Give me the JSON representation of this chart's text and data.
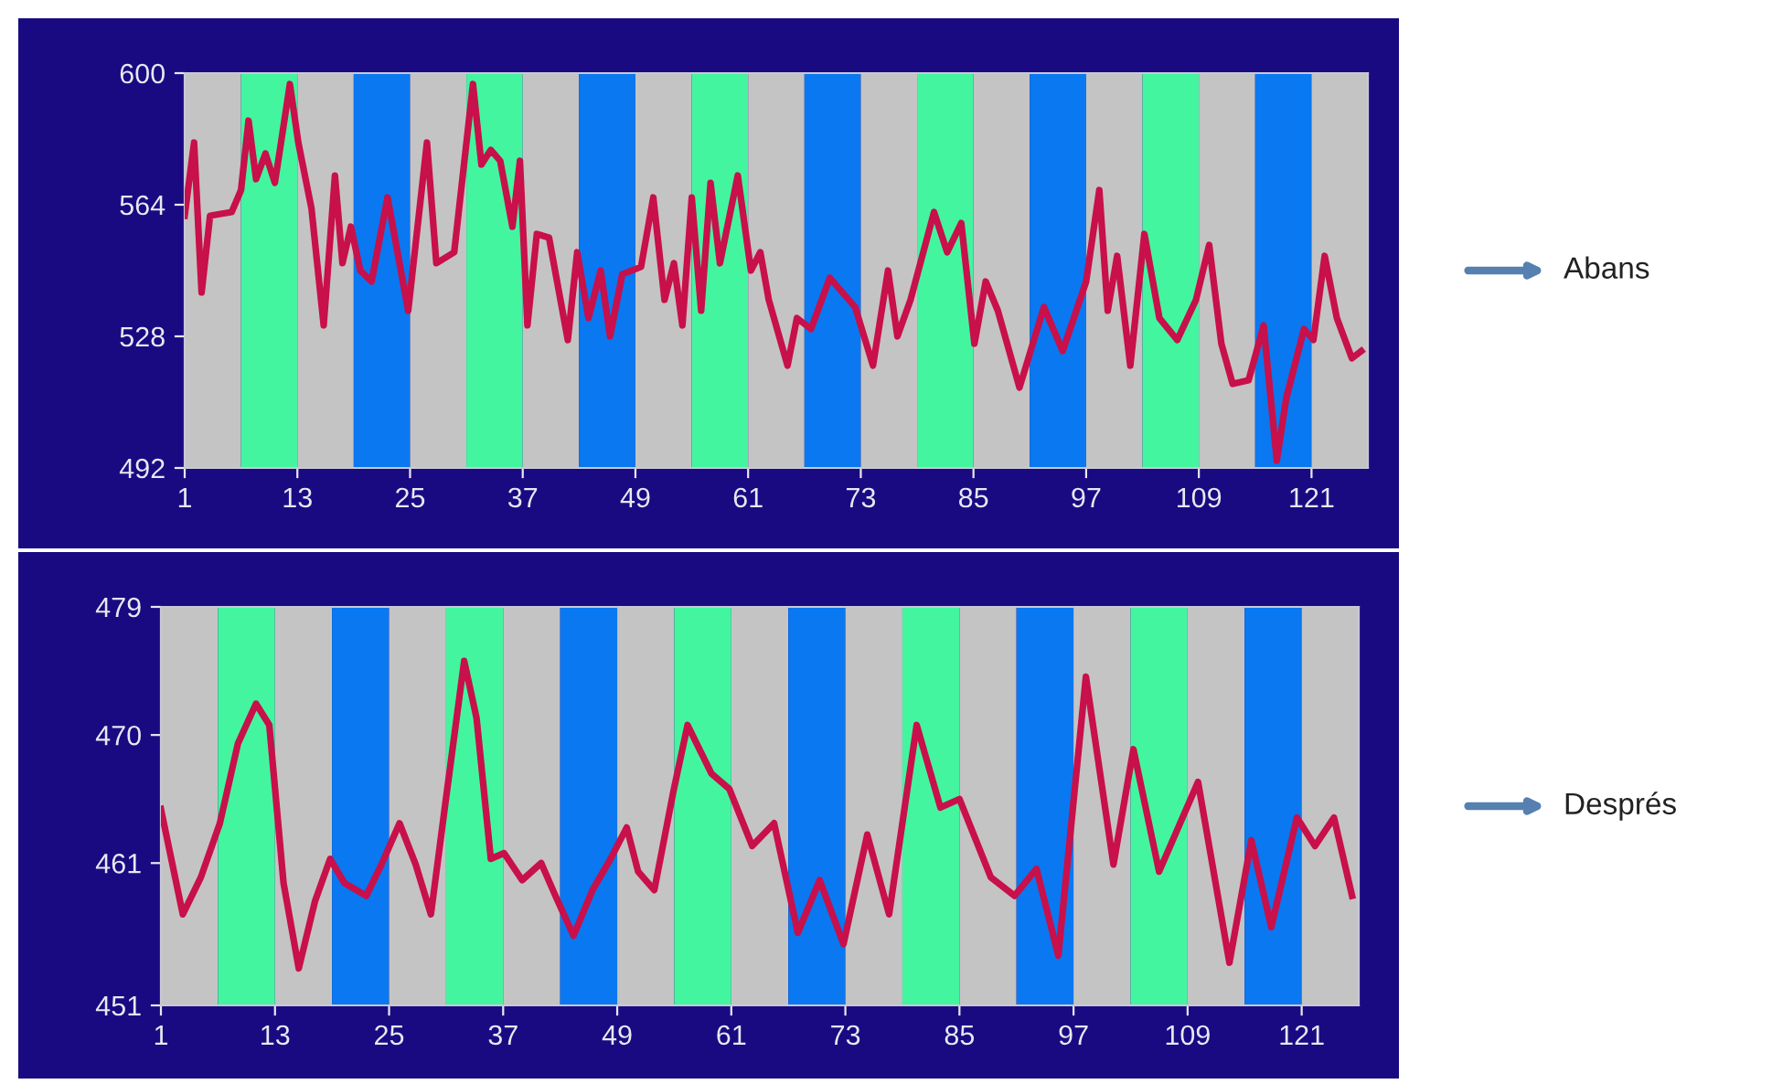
{
  "chart_data": [
    {
      "type": "line",
      "x": [
        1,
        2,
        2.8,
        3.7,
        6,
        7,
        7.8,
        8.6,
        9.6,
        10.6,
        11.2,
        12.2,
        13.1,
        14.5,
        15.8,
        17,
        17.8,
        18.7,
        19.7,
        20.9,
        22.6,
        24.8,
        26.8,
        27.8,
        29.7,
        31.7,
        32.6,
        33.6,
        34.6,
        35.9,
        36.7,
        37.5,
        38.5,
        39.8,
        41.8,
        42.8,
        44,
        45.3,
        46.3,
        47.6,
        49.6,
        50.9,
        52.1,
        53.1,
        54,
        55,
        56,
        57,
        58,
        59.9,
        61.3,
        62.3,
        63.2,
        65.2,
        66.2,
        67.7,
        69.7,
        72.4,
        74.3,
        75.9,
        76.9,
        78.3,
        80.8,
        82.2,
        83.7,
        85.1,
        86.3,
        87.6,
        89.9,
        92.5,
        94.5,
        97,
        98.4,
        99.3,
        100.3,
        101.7,
        103.2,
        104.8,
        106.7,
        108.7,
        110.1,
        111.4,
        112.6,
        114.3,
        115.9,
        117.3,
        118.3,
        120.2,
        121.2,
        122.4,
        123.7,
        125.3,
        126.3
      ],
      "series": [
        {
          "color": "#c8104a",
          "values": [
            561,
            581,
            540,
            561,
            562,
            568,
            587,
            571,
            578,
            570,
            580,
            597,
            581,
            563,
            531,
            572,
            548,
            558,
            546,
            543,
            566,
            535,
            581,
            548,
            551,
            597,
            575,
            579,
            576,
            558,
            576,
            531,
            556,
            555,
            527,
            551,
            533,
            546,
            528,
            545,
            547,
            566,
            538,
            548,
            531,
            566,
            535,
            570,
            548,
            572,
            546,
            551,
            538,
            520,
            533,
            530,
            544,
            536,
            520,
            546,
            528,
            538,
            562,
            551,
            559,
            526,
            543,
            535,
            514,
            536,
            524,
            543,
            568,
            535,
            550,
            520,
            556,
            533,
            527,
            538,
            553,
            526,
            515,
            516,
            531,
            494,
            511,
            530,
            527,
            550,
            533,
            522,
            524
          ]
        }
      ],
      "xlim": [
        1,
        127
      ],
      "xticks": [
        1,
        13,
        25,
        37,
        49,
        61,
        73,
        85,
        97,
        109,
        121
      ],
      "ylim": [
        492,
        600
      ],
      "yticks": [
        492,
        528,
        564,
        600
      ],
      "grid": false,
      "legend": false,
      "line_style": "solid",
      "marker": "none",
      "annotations": [
        "Abans"
      ],
      "bands": [
        {
          "axis": "x",
          "from": 1,
          "to": 7,
          "color": "#c4c4c4"
        },
        {
          "axis": "x",
          "from": 7,
          "to": 13,
          "color": "#44f5a0"
        },
        {
          "axis": "x",
          "from": 13,
          "to": 19,
          "color": "#c4c4c4"
        },
        {
          "axis": "x",
          "from": 19,
          "to": 25,
          "color": "#0a78f0"
        },
        {
          "axis": "x",
          "from": 25,
          "to": 31,
          "color": "#c4c4c4"
        },
        {
          "axis": "x",
          "from": 31,
          "to": 37,
          "color": "#44f5a0"
        },
        {
          "axis": "x",
          "from": 37,
          "to": 43,
          "color": "#c4c4c4"
        },
        {
          "axis": "x",
          "from": 43,
          "to": 49,
          "color": "#0a78f0"
        },
        {
          "axis": "x",
          "from": 49,
          "to": 55,
          "color": "#c4c4c4"
        },
        {
          "axis": "x",
          "from": 55,
          "to": 61,
          "color": "#44f5a0"
        },
        {
          "axis": "x",
          "from": 61,
          "to": 67,
          "color": "#c4c4c4"
        },
        {
          "axis": "x",
          "from": 67,
          "to": 73,
          "color": "#0a78f0"
        },
        {
          "axis": "x",
          "from": 73,
          "to": 79,
          "color": "#c4c4c4"
        },
        {
          "axis": "x",
          "from": 79,
          "to": 85,
          "color": "#44f5a0"
        },
        {
          "axis": "x",
          "from": 85,
          "to": 91,
          "color": "#c4c4c4"
        },
        {
          "axis": "x",
          "from": 91,
          "to": 97,
          "color": "#0a78f0"
        },
        {
          "axis": "x",
          "from": 97,
          "to": 103,
          "color": "#c4c4c4"
        },
        {
          "axis": "x",
          "from": 103,
          "to": 109,
          "color": "#44f5a0"
        },
        {
          "axis": "x",
          "from": 109,
          "to": 115,
          "color": "#c4c4c4"
        },
        {
          "axis": "x",
          "from": 115,
          "to": 121,
          "color": "#0a78f0"
        },
        {
          "axis": "x",
          "from": 121,
          "to": 127,
          "color": "#c4c4c4"
        }
      ]
    },
    {
      "type": "line",
      "x": [
        1,
        3.3,
        5.2,
        7.2,
        9.1,
        11,
        12.4,
        13.9,
        15.5,
        17.2,
        18.8,
        20.3,
        22.6,
        24.2,
        26.1,
        27.8,
        29.4,
        30.9,
        32.9,
        34.2,
        35.7,
        37.1,
        39,
        41,
        42.5,
        44.4,
        46.4,
        48.3,
        50,
        51.2,
        52.9,
        54.9,
        56.4,
        58.9,
        60.8,
        63.2,
        65.5,
        68,
        70.3,
        72.8,
        75.3,
        77.6,
        80.5,
        83,
        85,
        88.3,
        90.8,
        93.1,
        95.4,
        98.3,
        101.2,
        103.3,
        106,
        110.1,
        113.4,
        115.7,
        117.8,
        120.5,
        122.4,
        124.4,
        126.3
      ],
      "series": [
        {
          "color": "#c8104a",
          "values": [
            464.8,
            457.4,
            460,
            463.8,
            469.4,
            472.2,
            470.7,
            459.6,
            453.6,
            458.3,
            461.3,
            459.6,
            458.7,
            460.9,
            463.8,
            460.9,
            457.4,
            465.1,
            475.2,
            471.2,
            461.3,
            461.7,
            459.8,
            461,
            458.7,
            455.9,
            459.1,
            461.3,
            463.5,
            460.4,
            459.1,
            466,
            470.7,
            467.3,
            466.2,
            462.2,
            463.8,
            456.1,
            459.8,
            455.3,
            463,
            457.4,
            470.7,
            464.9,
            465.5,
            460,
            458.7,
            460.6,
            454.5,
            474.1,
            460.9,
            469,
            460.4,
            466.7,
            454,
            462.6,
            456.5,
            464.2,
            462.2,
            464.2,
            458.7
          ]
        }
      ],
      "xlim": [
        1,
        127
      ],
      "xticks": [
        1,
        13,
        25,
        37,
        49,
        61,
        73,
        85,
        97,
        109,
        121
      ],
      "ylim": [
        451,
        479
      ],
      "yticks": [
        451,
        461,
        470,
        479
      ],
      "grid": false,
      "legend": false,
      "line_style": "solid",
      "marker": "none",
      "annotations": [
        "Després"
      ],
      "bands": [
        {
          "axis": "x",
          "from": 1,
          "to": 7,
          "color": "#c4c4c4"
        },
        {
          "axis": "x",
          "from": 7,
          "to": 13,
          "color": "#44f5a0"
        },
        {
          "axis": "x",
          "from": 13,
          "to": 19,
          "color": "#c4c4c4"
        },
        {
          "axis": "x",
          "from": 19,
          "to": 25,
          "color": "#0a78f0"
        },
        {
          "axis": "x",
          "from": 25,
          "to": 31,
          "color": "#c4c4c4"
        },
        {
          "axis": "x",
          "from": 31,
          "to": 37,
          "color": "#44f5a0"
        },
        {
          "axis": "x",
          "from": 37,
          "to": 43,
          "color": "#c4c4c4"
        },
        {
          "axis": "x",
          "from": 43,
          "to": 49,
          "color": "#0a78f0"
        },
        {
          "axis": "x",
          "from": 49,
          "to": 55,
          "color": "#c4c4c4"
        },
        {
          "axis": "x",
          "from": 55,
          "to": 61,
          "color": "#44f5a0"
        },
        {
          "axis": "x",
          "from": 61,
          "to": 67,
          "color": "#c4c4c4"
        },
        {
          "axis": "x",
          "from": 67,
          "to": 73,
          "color": "#0a78f0"
        },
        {
          "axis": "x",
          "from": 73,
          "to": 79,
          "color": "#c4c4c4"
        },
        {
          "axis": "x",
          "from": 79,
          "to": 85,
          "color": "#44f5a0"
        },
        {
          "axis": "x",
          "from": 85,
          "to": 91,
          "color": "#c4c4c4"
        },
        {
          "axis": "x",
          "from": 91,
          "to": 97,
          "color": "#0a78f0"
        },
        {
          "axis": "x",
          "from": 97,
          "to": 103,
          "color": "#c4c4c4"
        },
        {
          "axis": "x",
          "from": 103,
          "to": 109,
          "color": "#44f5a0"
        },
        {
          "axis": "x",
          "from": 109,
          "to": 115,
          "color": "#c4c4c4"
        },
        {
          "axis": "x",
          "from": 115,
          "to": 121,
          "color": "#0a78f0"
        },
        {
          "axis": "x",
          "from": 121,
          "to": 127,
          "color": "#c4c4c4"
        }
      ]
    }
  ]
}
